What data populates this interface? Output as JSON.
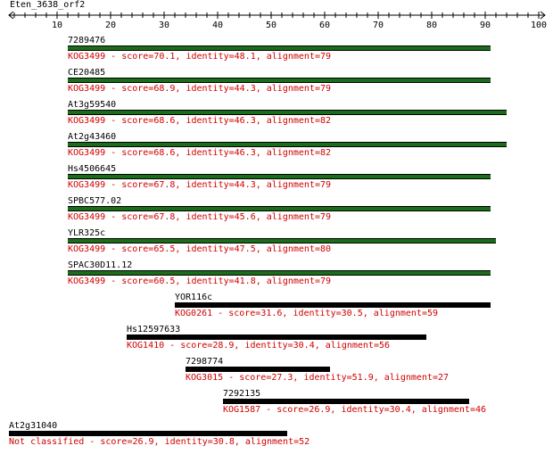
{
  "query_name": "Eten_3638_orf2",
  "ruler": {
    "min": 0,
    "max": 100,
    "major_ticks": [
      10,
      20,
      30,
      40,
      50,
      60,
      70,
      80,
      90,
      100
    ]
  },
  "colors": {
    "kog_bar": "#1a6e1a",
    "other_bar": "#000000",
    "description_text": "#d00000",
    "label_text": "#000000"
  },
  "hits": [
    {
      "name": "7289476",
      "start": 12,
      "end": 91,
      "kog": true,
      "description": "KOG3499 - score=70.1, identity=48.1, alignment=79"
    },
    {
      "name": "CE20485",
      "start": 12,
      "end": 91,
      "kog": true,
      "description": "KOG3499 - score=68.9, identity=44.3, alignment=79"
    },
    {
      "name": "At3g59540",
      "start": 12,
      "end": 94,
      "kog": true,
      "description": "KOG3499 - score=68.6, identity=46.3, alignment=82"
    },
    {
      "name": "At2g43460",
      "start": 12,
      "end": 94,
      "kog": true,
      "description": "KOG3499 - score=68.6, identity=46.3, alignment=82"
    },
    {
      "name": "Hs4506645",
      "start": 12,
      "end": 91,
      "kog": true,
      "description": "KOG3499 - score=67.8, identity=44.3, alignment=79"
    },
    {
      "name": "SPBC577.02",
      "start": 12,
      "end": 91,
      "kog": true,
      "description": "KOG3499 - score=67.8, identity=45.6, alignment=79"
    },
    {
      "name": "YLR325c",
      "start": 12,
      "end": 92,
      "kog": true,
      "description": "KOG3499 - score=65.5, identity=47.5, alignment=80"
    },
    {
      "name": "SPAC30D11.12",
      "start": 12,
      "end": 91,
      "kog": true,
      "description": "KOG3499 - score=60.5, identity=41.8, alignment=79"
    },
    {
      "name": "YOR116c",
      "start": 32,
      "end": 91,
      "kog": false,
      "description": "KOG0261 - score=31.6, identity=30.5, alignment=59"
    },
    {
      "name": "Hs12597633",
      "start": 23,
      "end": 79,
      "kog": false,
      "description": "KOG1410 - score=28.9, identity=30.4, alignment=56"
    },
    {
      "name": "7298774",
      "start": 34,
      "end": 61,
      "kog": false,
      "description": "KOG3015 - score=27.3, identity=51.9, alignment=27"
    },
    {
      "name": "7292135",
      "start": 41,
      "end": 87,
      "kog": false,
      "description": "KOG1587 - score=26.9, identity=30.4, alignment=46"
    },
    {
      "name": "At2g31040",
      "start": 1,
      "end": 53,
      "kog": false,
      "description": "Not classified - score=26.9, identity=30.8, alignment=52"
    }
  ]
}
